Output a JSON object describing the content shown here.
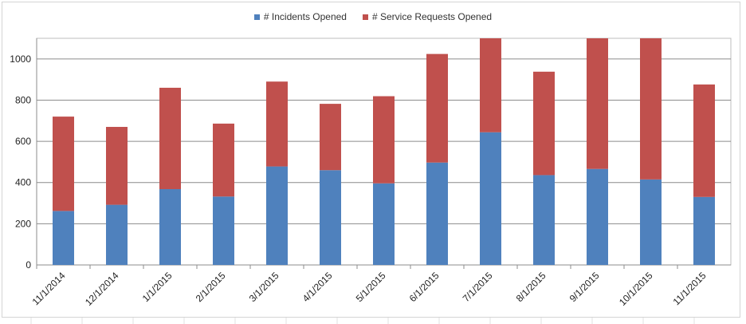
{
  "chart_data": {
    "type": "bar",
    "stacked": true,
    "categories": [
      "11/1/2014",
      "12/1/2014",
      "1/1/2015",
      "2/1/2015",
      "3/1/2015",
      "4/1/2015",
      "5/1/2015",
      "6/1/2015",
      "7/1/2015",
      "8/1/2015",
      "9/1/2015",
      "10/1/2015",
      "11/1/2015"
    ],
    "series": [
      {
        "name": "# Incidents Opened",
        "color": "#4f81bd",
        "values": [
          262,
          292,
          368,
          332,
          478,
          460,
          396,
          497,
          644,
          436,
          466,
          415,
          330
        ]
      },
      {
        "name": "# Service Requests Opened",
        "color": "#c0504d",
        "values": [
          458,
          378,
          492,
          354,
          412,
          322,
          423,
          527,
          460,
          502,
          640,
          700,
          546
        ]
      }
    ],
    "yticks": [
      "0",
      "200",
      "400",
      "600",
      "800",
      "1000"
    ],
    "ylim": [
      0,
      1100
    ],
    "grid": true,
    "legend_position": "top"
  }
}
